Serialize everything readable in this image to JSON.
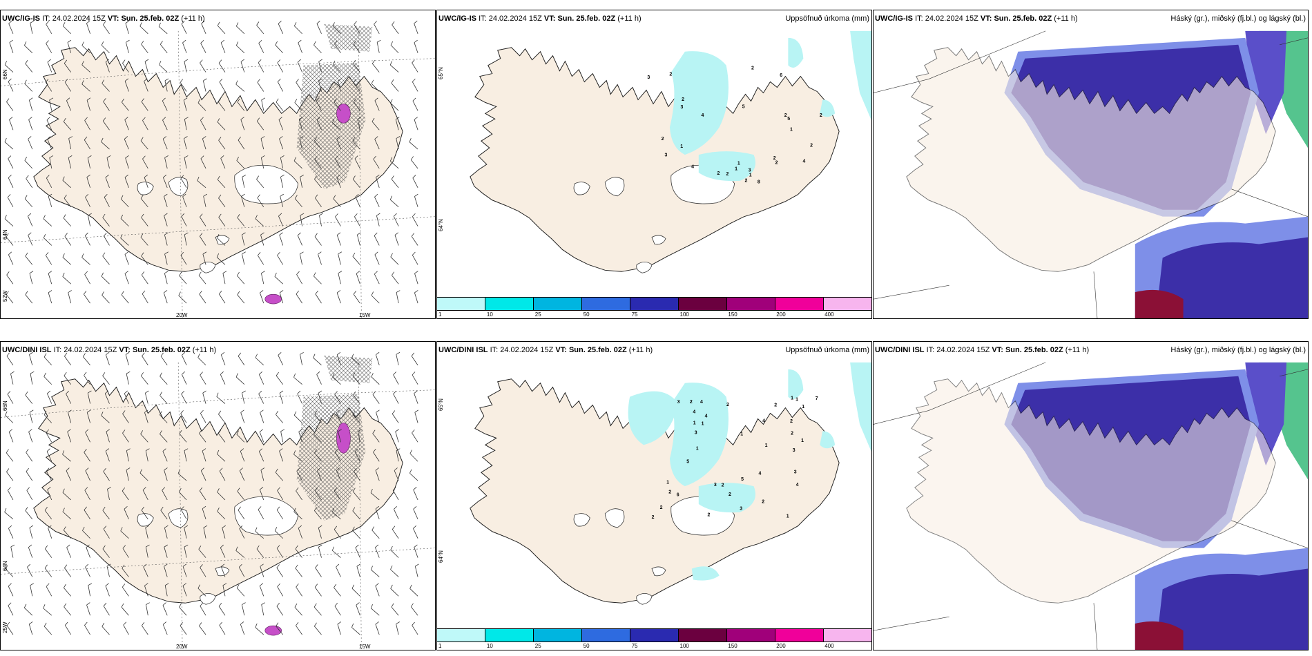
{
  "rows": [
    {
      "model": "UWC/IG-IS",
      "panels": [
        {
          "model": "UWC/IG-IS",
          "it_label": "IT:",
          "it": "24.02.2024 15Z",
          "vt_label": "VT:",
          "vt": "Sun. 25.feb. 02Z",
          "lead": "(+11 h)",
          "right_title": "",
          "lat_labels": [
            "66N",
            "64N",
            "52W"
          ],
          "lon_labels": [
            "20W",
            "15W"
          ]
        },
        {
          "model": "UWC/IG-IS",
          "it_label": "IT:",
          "it": "24.02.2024 15Z",
          "vt_label": "VT:",
          "vt": "Sun. 25.feb. 02Z",
          "lead": "(+11 h)",
          "right_title": "Uppsöfnuð úrkoma (mm)",
          "lat_labels": [
            "65°N",
            "64°N"
          ],
          "precip_numbers": [
            "2",
            "1",
            "5",
            "3",
            "2",
            "3",
            "1",
            "2",
            "2",
            "2",
            "1",
            "4",
            "2",
            "8",
            "6",
            "1",
            "2",
            "2",
            "2",
            "5",
            "2",
            "1",
            "3",
            "4",
            "3",
            "4",
            "2",
            "2"
          ]
        },
        {
          "model": "UWC/IG-IS",
          "it_label": "IT:",
          "it": "24.02.2024 15Z",
          "vt_label": "VT:",
          "vt": "Sun. 25.feb. 02Z",
          "lead": "(+11 h)",
          "right_title": "Háský (gr.), miðský (fj.bl.) og lágský (bl.)"
        }
      ]
    },
    {
      "model": "UWC/DINI ISL",
      "panels": [
        {
          "model": "UWC/DINI ISL",
          "it_label": "IT:",
          "it": "24.02.2024 15Z",
          "vt_label": "VT:",
          "vt": "Sun. 25.feb. 02Z",
          "lead": "(+11 h)",
          "right_title": "",
          "lat_labels": [
            "66N",
            "64N",
            "25W"
          ],
          "lon_labels": [
            "20W",
            "15W"
          ]
        },
        {
          "model": "UWC/DINI ISL",
          "it_label": "IT:",
          "it": "24.02.2024 15Z",
          "vt_label": "VT:",
          "vt": "Sun. 25.feb. 02Z",
          "lead": "(+11 h)",
          "right_title": "Uppsöfnuð úrkoma (mm)",
          "lat_labels": [
            "65°N",
            "64°N"
          ],
          "precip_numbers": [
            "1",
            "4",
            "7",
            "3",
            "2",
            "3",
            "1",
            "1",
            "2",
            "1",
            "5",
            "4",
            "2",
            "3",
            "1",
            "2",
            "1",
            "4",
            "1",
            "2",
            "3",
            "2",
            "1",
            "2",
            "6",
            "2",
            "1",
            "2",
            "3",
            "2",
            "4",
            "1",
            "4",
            "5",
            "3",
            "2",
            "2",
            "4",
            "1"
          ]
        },
        {
          "model": "UWC/DINI ISL",
          "it_label": "IT:",
          "it": "24.02.2024 15Z",
          "vt_label": "VT:",
          "vt": "Sun. 25.feb. 02Z",
          "lead": "(+11 h)",
          "right_title": "Háský (gr.), miðský (fj.bl.) og lágský (bl.)"
        }
      ]
    }
  ],
  "colorbar": {
    "colors": [
      "#bff9f9",
      "#00e8e8",
      "#00b5e0",
      "#2e6be0",
      "#2a2ab0",
      "#6b003f",
      "#a0007a",
      "#f0009a",
      "#f7b5ee"
    ],
    "ticks": [
      "1",
      "10",
      "25",
      "50",
      "75",
      "100",
      "150",
      "200",
      "400"
    ]
  },
  "colors": {
    "land": "#f8eee2",
    "land_sh": "#ede1d3",
    "precip": "#b8f4f4",
    "cloud_high": "#5a4fc9",
    "cloud_low": "#3c2fa8",
    "cloud_mid": "#7e8fe8",
    "green": "#2bb572",
    "magenta": "#c64fc8",
    "darkred": "#8b1036"
  }
}
